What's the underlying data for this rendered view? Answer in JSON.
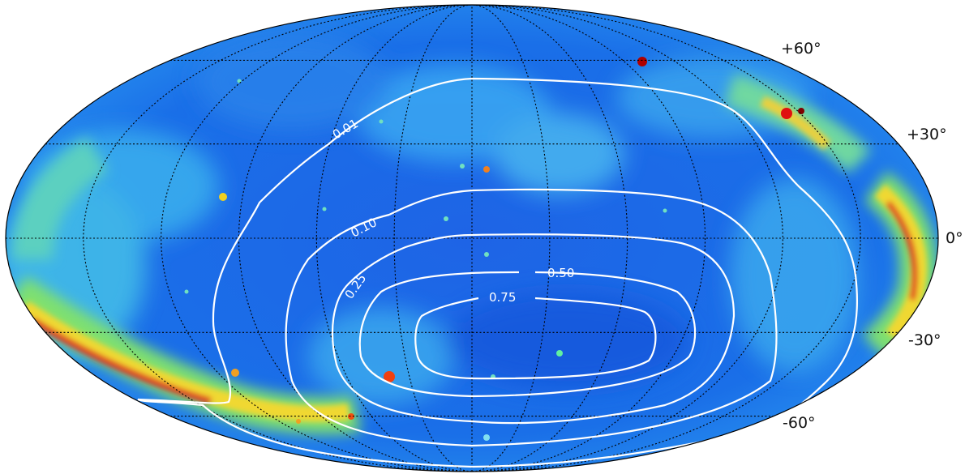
{
  "map": {
    "projection": "mollweide",
    "graticule": {
      "meridian_step_deg": 30,
      "parallel_step_deg": 30,
      "style": "dotted",
      "color": "#000000"
    },
    "latitude_labels": [
      {
        "lat": 60,
        "text": "+60°"
      },
      {
        "lat": 30,
        "text": "+30°"
      },
      {
        "lat": 0,
        "text": "0°"
      },
      {
        "lat": -30,
        "text": "-30°"
      },
      {
        "lat": -60,
        "text": "-60°"
      }
    ],
    "colormap": "jet",
    "contours": [
      {
        "level": "0.01",
        "color": "#ffffff"
      },
      {
        "level": "0.10",
        "color": "#ffffff"
      },
      {
        "level": "0.25",
        "color": "#ffffff"
      },
      {
        "level": "0.50",
        "color": "#ffffff"
      },
      {
        "level": "0.75",
        "color": "#ffffff"
      }
    ]
  }
}
